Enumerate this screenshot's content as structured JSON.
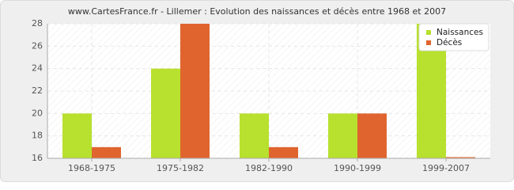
{
  "chart_data": {
    "type": "bar",
    "title": "www.CartesFrance.fr - Lillemer : Evolution des naissances et décès entre 1968 et 2007",
    "categories": [
      "1968-1975",
      "1975-1982",
      "1982-1990",
      "1990-1999",
      "1999-2007"
    ],
    "series": [
      {
        "name": "Naissances",
        "color": "#b8e02e",
        "values": [
          20,
          24,
          20,
          20,
          28
        ]
      },
      {
        "name": "Décès",
        "color": "#e0642e",
        "values": [
          17,
          28,
          17,
          20,
          16
        ]
      }
    ],
    "ylim": [
      16,
      28
    ],
    "yticks": [
      16,
      18,
      20,
      22,
      24,
      26,
      28
    ],
    "grid": true,
    "legend": "top-right"
  }
}
